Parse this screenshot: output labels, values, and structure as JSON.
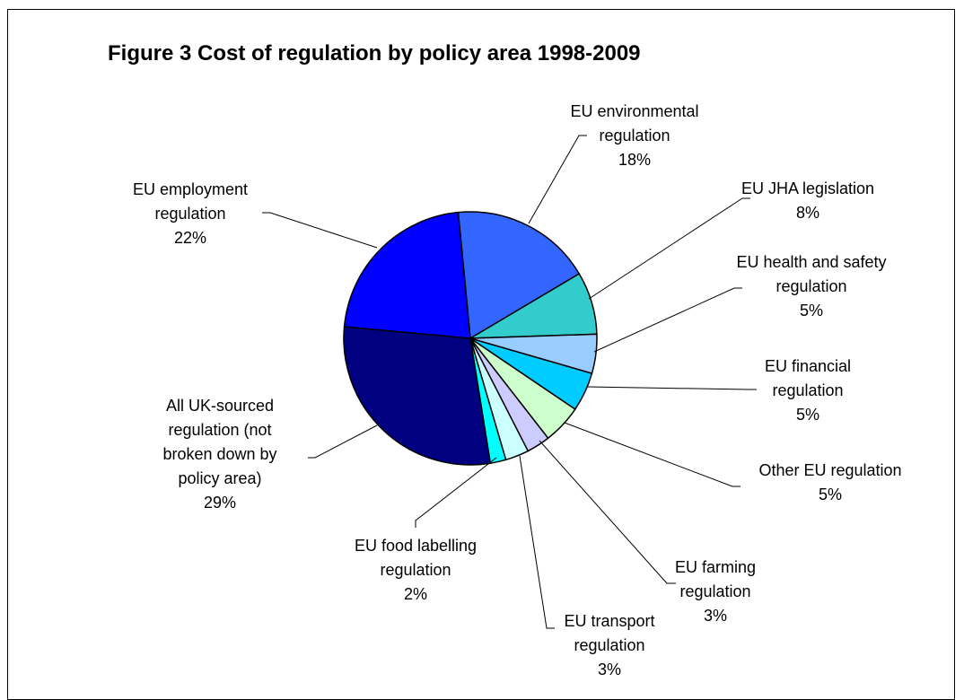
{
  "chart_data": {
    "type": "pie",
    "title": "Figure 3 Cost of regulation by policy area 1998-2009",
    "slices": [
      {
        "name": "EU environmental regulation",
        "lines": [
          "EU environmental",
          "regulation"
        ],
        "pct_label": "18%",
        "value": 18,
        "color": "#3366ff"
      },
      {
        "name": "EU JHA legislation",
        "lines": [
          "EU JHA legislation"
        ],
        "pct_label": "8%",
        "value": 8,
        "color": "#33cccc"
      },
      {
        "name": "EU health and safety regulation",
        "lines": [
          "EU health and safety",
          "regulation"
        ],
        "pct_label": "5%",
        "value": 5,
        "color": "#99ccff"
      },
      {
        "name": "EU financial regulation",
        "lines": [
          "EU financial",
          "regulation"
        ],
        "pct_label": "5%",
        "value": 5,
        "color": "#00ccff"
      },
      {
        "name": "Other EU regulation",
        "lines": [
          "Other EU regulation"
        ],
        "pct_label": "5%",
        "value": 5,
        "color": "#ccffcc"
      },
      {
        "name": "EU farming regulation",
        "lines": [
          "EU farming",
          "regulation"
        ],
        "pct_label": "3%",
        "value": 3,
        "color": "#ccccff"
      },
      {
        "name": "EU transport regulation",
        "lines": [
          "EU transport",
          "regulation"
        ],
        "pct_label": "3%",
        "value": 3,
        "color": "#ccffff"
      },
      {
        "name": "EU food labelling regulation",
        "lines": [
          "EU food labelling",
          "regulation"
        ],
        "pct_label": "2%",
        "value": 2,
        "color": "#00ffff"
      },
      {
        "name": "All UK-sourced regulation (not broken down by policy area)",
        "lines": [
          "All UK-sourced",
          "regulation (not",
          "broken down by",
          "policy area)"
        ],
        "pct_label": "29%",
        "value": 29,
        "color": "#000080"
      },
      {
        "name": "EU employment regulation",
        "lines": [
          "EU employment",
          "regulation"
        ],
        "pct_label": "22%",
        "value": 22,
        "color": "#0000ff"
      }
    ]
  }
}
